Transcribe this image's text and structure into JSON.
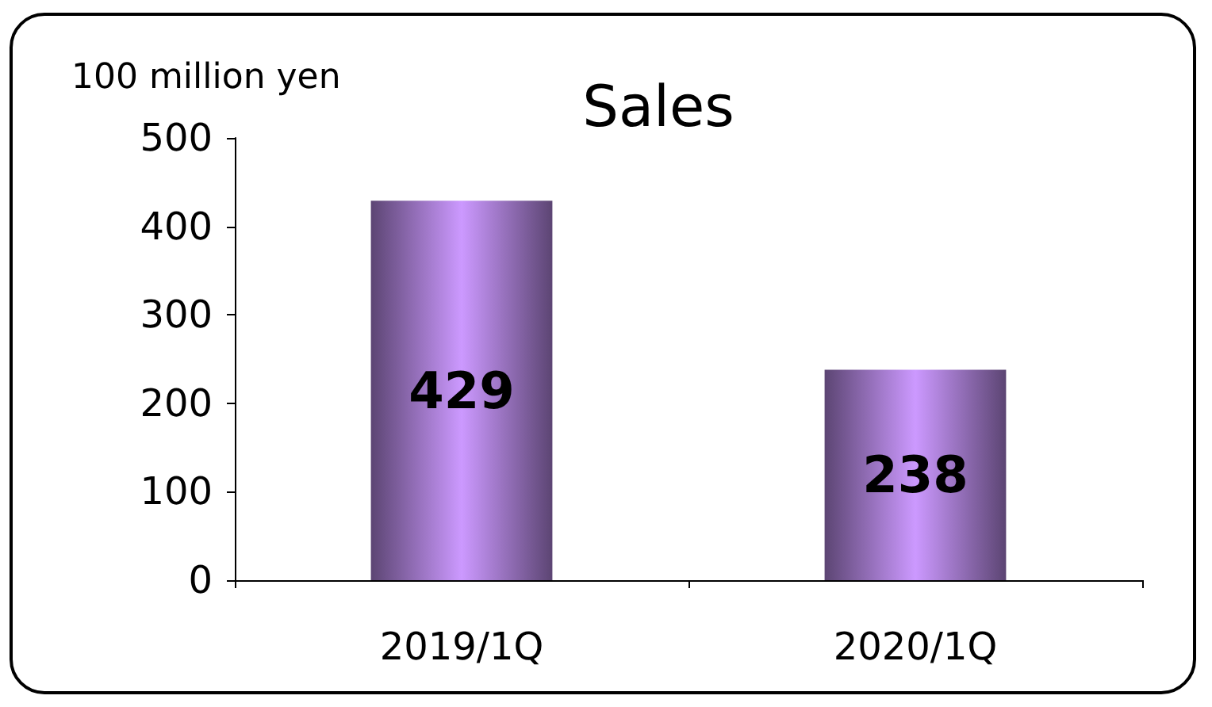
{
  "chart_data": {
    "type": "bar",
    "title": "Sales",
    "ylabel": "100 million yen",
    "categories": [
      "2019/1Q",
      "2020/1Q"
    ],
    "values": [
      429,
      238
    ],
    "color": "#cc99ff",
    "ylim": [
      0,
      500
    ],
    "yticks": [
      0,
      100,
      200,
      300,
      400,
      500
    ],
    "grid": false,
    "data_labels": true
  }
}
